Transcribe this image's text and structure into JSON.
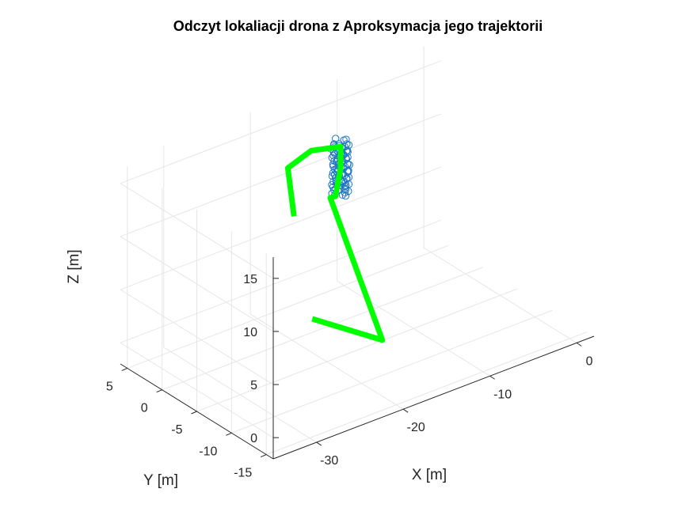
{
  "chart_data": {
    "type": "line3d",
    "title": "Odczyt lokaliacji drona z Aproksymacja jego trajektorii",
    "xlabel": "X [m]",
    "ylabel": "Y [m]",
    "zlabel": "Z [m]",
    "xlim": [
      -35,
      2
    ],
    "ylim": [
      -16,
      6
    ],
    "zlim": [
      -2,
      17
    ],
    "xticks": [
      0,
      -10,
      -20,
      -30
    ],
    "xtick_labels": [
      "0",
      "-10",
      "-20",
      "-30"
    ],
    "yticks": [
      5,
      0,
      -5,
      -10,
      -15
    ],
    "ytick_labels": [
      "5",
      "0",
      "-5",
      "-10",
      "-15"
    ],
    "zticks": [
      0,
      5,
      10,
      15
    ],
    "ztick_labels": [
      "0",
      "5",
      "10",
      "15"
    ],
    "grid": true,
    "series": [
      {
        "kind": "path",
        "color": "#00ff00",
        "points": [
          [
            -27.0,
            -9.0,
            15.5
          ],
          [
            -22.5,
            -2.5,
            16.0
          ],
          [
            -17.0,
            1.0,
            14.5
          ],
          [
            -12.0,
            3.0,
            12.5
          ],
          [
            -12.0,
            3.0,
            11.0
          ],
          [
            -12.0,
            3.0,
            12.0
          ],
          [
            -12.0,
            3.0,
            11.5
          ],
          [
            -12.0,
            3.0,
            10.5
          ],
          [
            -15.0,
            0.0,
            10.0
          ],
          [
            -18.0,
            -3.0,
            12.0
          ],
          [
            -16.0,
            -8.0,
            0.0
          ],
          [
            -26.5,
            -11.0,
            6.5
          ]
        ]
      },
      {
        "kind": "markers",
        "marker": "o",
        "color": "#1f77c4",
        "center": [
          -12.0,
          3.0
        ],
        "radius": 0.9,
        "z_range": [
          8.0,
          13.0
        ],
        "count": 90
      }
    ]
  }
}
